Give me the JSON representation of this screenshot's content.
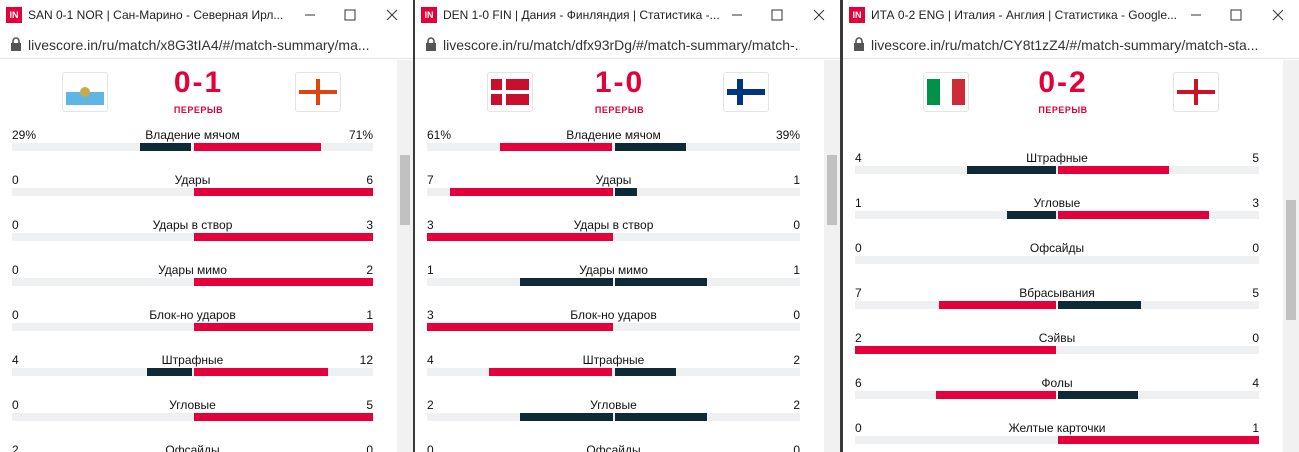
{
  "windows": [
    {
      "logo": "IN",
      "title": "SAN 0-1 NOR | Сан-Марино - Северная Ирл...",
      "url": "livescore.in/ru/match/x8G3tIA4/#/match-summary/ma...",
      "score": "0-1",
      "status": "ПЕРЕРЫВ",
      "stats": [
        {
          "label": "Владение мячом",
          "home": 29,
          "away": 71,
          "home_label": "29%",
          "away_label": "71%"
        },
        {
          "label": "Удары",
          "home": 0,
          "away": 6
        },
        {
          "label": "Удары в створ",
          "home": 0,
          "away": 3
        },
        {
          "label": "Удары мимо",
          "home": 0,
          "away": 2
        },
        {
          "label": "Блок-но ударов",
          "home": 0,
          "away": 1
        },
        {
          "label": "Штрафные",
          "home": 4,
          "away": 12
        },
        {
          "label": "Угловые",
          "home": 0,
          "away": 5
        },
        {
          "label": "Офсайды",
          "home": 2,
          "away": 0
        }
      ]
    },
    {
      "logo": "IN",
      "title": "DEN 1-0 FIN | Дания - Финляндия | Статистика -...",
      "url": "livescore.in/ru/match/dfx93rDg/#/match-summary/match-...",
      "score": "1-0",
      "status": "ПЕРЕРЫВ",
      "stats": [
        {
          "label": "Владение мячом",
          "home": 61,
          "away": 39,
          "home_label": "61%",
          "away_label": "39%"
        },
        {
          "label": "Удары",
          "home": 7,
          "away": 1
        },
        {
          "label": "Удары в створ",
          "home": 3,
          "away": 0
        },
        {
          "label": "Удары мимо",
          "home": 1,
          "away": 1
        },
        {
          "label": "Блок-но ударов",
          "home": 3,
          "away": 0
        },
        {
          "label": "Штрафные",
          "home": 4,
          "away": 2
        },
        {
          "label": "Угловые",
          "home": 2,
          "away": 2
        },
        {
          "label": "Офсайды",
          "home": 0,
          "away": 0
        }
      ]
    },
    {
      "logo": "IN",
      "title": "ИТА 0-2 ENG | Италия - Англия | Статистика - Google...",
      "url": "livescore.in/ru/match/CY8t1zZ4/#/match-summary/match-sta...",
      "score": "0-2",
      "status": "ПЕРЕРЫВ",
      "stats": [
        {
          "label": "Штрафные",
          "home": 4,
          "away": 5
        },
        {
          "label": "Угловые",
          "home": 1,
          "away": 3
        },
        {
          "label": "Офсайды",
          "home": 0,
          "away": 0
        },
        {
          "label": "Вбрасывания",
          "home": 7,
          "away": 5
        },
        {
          "label": "Сэйвы",
          "home": 2,
          "away": 0
        },
        {
          "label": "Фолы",
          "home": 6,
          "away": 4
        },
        {
          "label": "Желтые карточки",
          "home": 0,
          "away": 1
        }
      ]
    }
  ]
}
